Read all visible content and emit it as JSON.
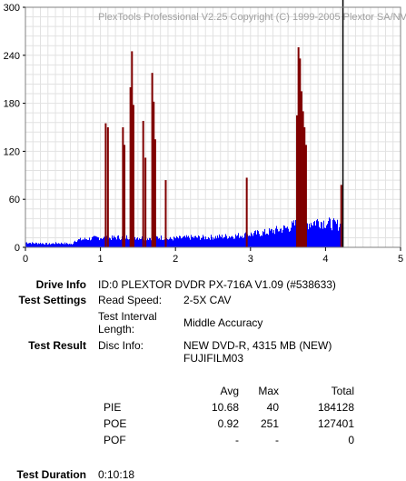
{
  "chart_data": {
    "type": "bar",
    "watermark": "PlexTools Professional V2.25 Copyright (C) 1999-2005 Plextor SA/NV",
    "xlim": [
      0,
      5
    ],
    "ylim": [
      0,
      300
    ],
    "x_ticks": [
      "0",
      "1",
      "2",
      "3",
      "4",
      "5"
    ],
    "y_ticks": [
      "0",
      "60",
      "120",
      "180",
      "240",
      "300"
    ],
    "grid": true,
    "data_end_gb": 4.22,
    "series": [
      {
        "name": "PIE",
        "color": "#0000ff",
        "values": [
          [
            0.0,
            6
          ],
          [
            0.1,
            5
          ],
          [
            0.2,
            5
          ],
          [
            0.3,
            4
          ],
          [
            0.4,
            5
          ],
          [
            0.5,
            5
          ],
          [
            0.6,
            4
          ],
          [
            0.62,
            3
          ],
          [
            0.64,
            8
          ],
          [
            0.7,
            9
          ],
          [
            0.8,
            10
          ],
          [
            0.9,
            11
          ],
          [
            1.0,
            12
          ],
          [
            1.1,
            11
          ],
          [
            1.2,
            12
          ],
          [
            1.3,
            12
          ],
          [
            1.4,
            13
          ],
          [
            1.5,
            12
          ],
          [
            1.6,
            11
          ],
          [
            1.7,
            12
          ],
          [
            1.8,
            12
          ],
          [
            1.9,
            10
          ],
          [
            2.0,
            11
          ],
          [
            2.2,
            12
          ],
          [
            2.4,
            12
          ],
          [
            2.6,
            13
          ],
          [
            2.8,
            14
          ],
          [
            3.0,
            16
          ],
          [
            3.2,
            18
          ],
          [
            3.4,
            22
          ],
          [
            3.5,
            24
          ],
          [
            3.6,
            28
          ],
          [
            3.7,
            27
          ],
          [
            3.8,
            30
          ],
          [
            3.9,
            32
          ],
          [
            4.0,
            30
          ],
          [
            4.1,
            28
          ],
          [
            4.2,
            27
          ]
        ]
      },
      {
        "name": "POE",
        "color": "#800000",
        "values": [
          [
            1.07,
            155
          ],
          [
            1.1,
            150
          ],
          [
            1.3,
            150
          ],
          [
            1.32,
            128
          ],
          [
            1.4,
            200
          ],
          [
            1.42,
            245
          ],
          [
            1.44,
            178
          ],
          [
            1.57,
            158
          ],
          [
            1.6,
            112
          ],
          [
            1.69,
            218
          ],
          [
            1.71,
            182
          ],
          [
            1.73,
            135
          ],
          [
            1.87,
            84
          ],
          [
            2.95,
            87
          ],
          [
            3.62,
            165
          ],
          [
            3.64,
            250
          ],
          [
            3.66,
            236
          ],
          [
            3.68,
            195
          ],
          [
            3.7,
            170
          ],
          [
            3.72,
            150
          ],
          [
            3.74,
            128
          ],
          [
            4.21,
            78
          ]
        ]
      }
    ]
  },
  "info": {
    "drive_info_label": "Drive Info",
    "drive_info_value": "ID:0 PLEXTOR DVDR PX-716A V1.09 (#538633)",
    "test_settings_label": "Test Settings",
    "read_speed_label": "Read Speed:",
    "read_speed_value": "2-5X CAV",
    "interval_label_1": "Test Interval",
    "interval_label_2": "Length:",
    "interval_value": "Middle Accuracy",
    "test_result_label": "Test Result",
    "disc_info_label": "Disc Info:",
    "disc_info_value_1": "NEW DVD-R, 4315 MB (NEW)",
    "disc_info_value_2": "FUJIFILM03"
  },
  "stats": {
    "headers": [
      "Avg",
      "Max",
      "Total"
    ],
    "rows": [
      {
        "name": "PIE",
        "avg": "10.68",
        "max": "40",
        "total": "184128"
      },
      {
        "name": "POE",
        "avg": "0.92",
        "max": "251",
        "total": "127401"
      },
      {
        "name": "POF",
        "avg": "-",
        "max": "-",
        "total": "0"
      }
    ]
  },
  "duration": {
    "label": "Test Duration",
    "value": "0:10:18"
  }
}
